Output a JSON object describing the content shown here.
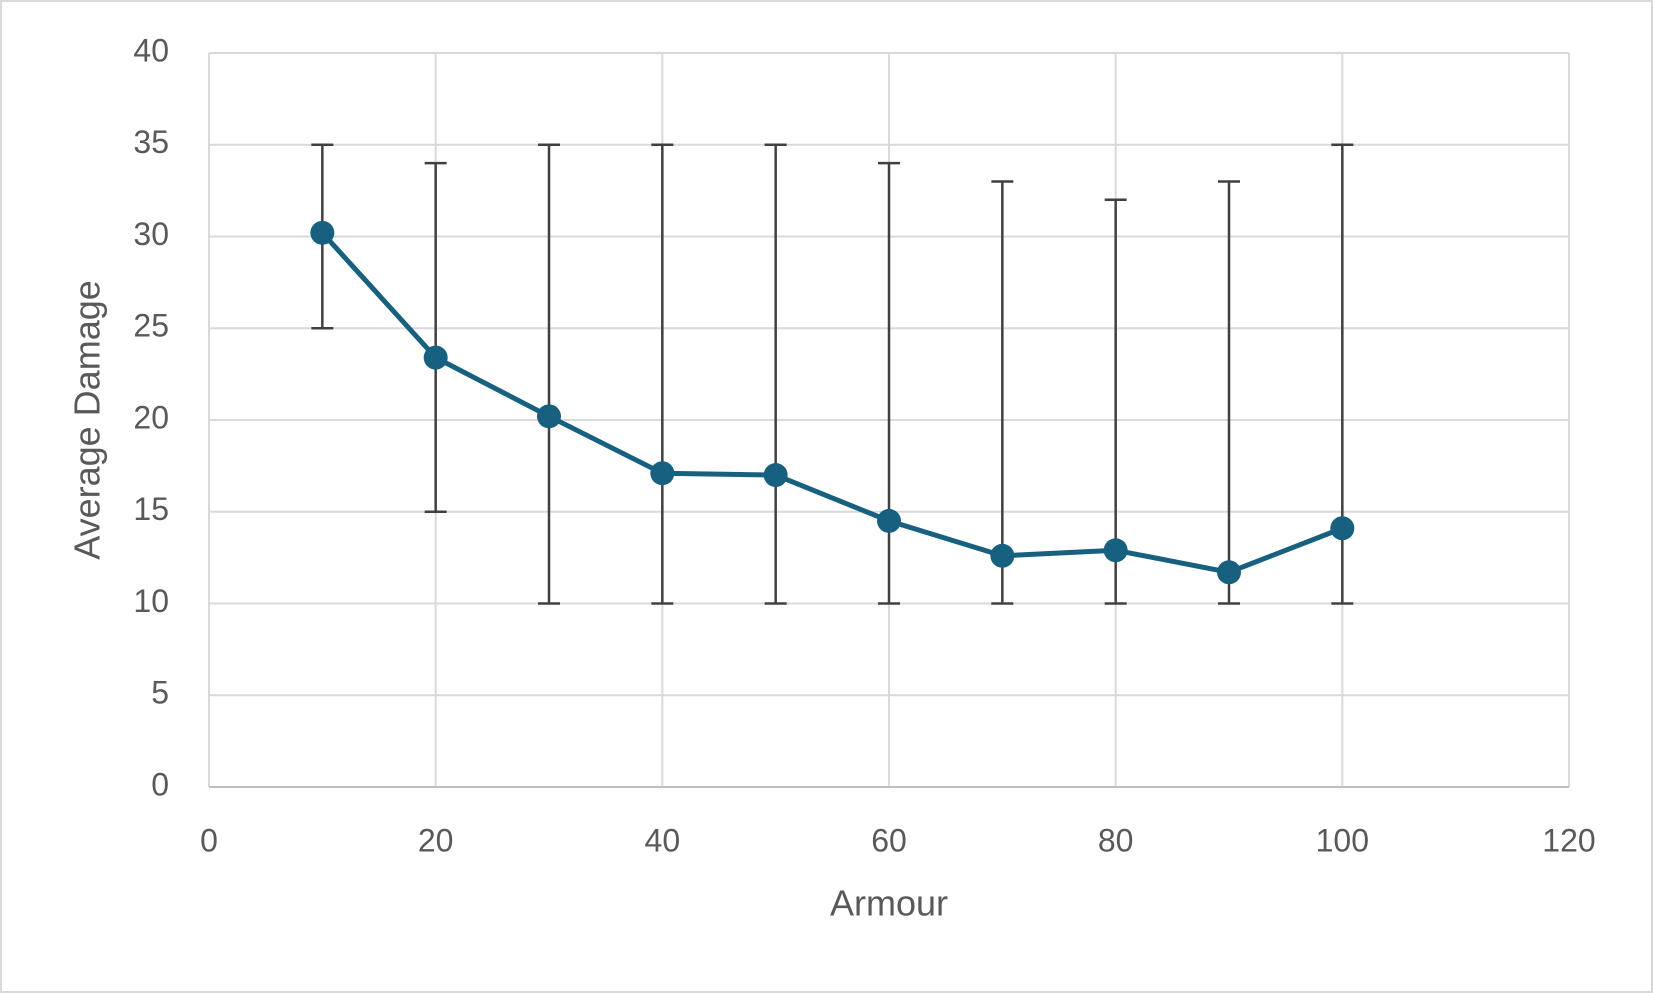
{
  "chart_data": {
    "type": "line",
    "x_label": "Armour",
    "y_label": "Average Damage",
    "x": [
      10,
      20,
      30,
      40,
      50,
      60,
      70,
      80,
      90,
      100
    ],
    "series": [
      {
        "color": "#17607f",
        "values": [
          30.2,
          23.4,
          20.2,
          17.1,
          17.0,
          14.5,
          12.6,
          12.9,
          11.7,
          14.1
        ],
        "low": [
          25,
          15,
          10,
          10,
          10,
          10,
          10,
          10,
          10,
          10
        ],
        "high": [
          35,
          34,
          35,
          35,
          35,
          34,
          33,
          32,
          33,
          35
        ]
      }
    ],
    "error_color": "#404040",
    "xlim": [
      0,
      120
    ],
    "xticks": [
      0,
      20,
      40,
      60,
      80,
      100,
      120
    ],
    "ylim": [
      0,
      40
    ],
    "yticks": [
      0,
      5,
      10,
      15,
      20,
      25,
      30,
      35,
      40
    ],
    "grid": true
  }
}
